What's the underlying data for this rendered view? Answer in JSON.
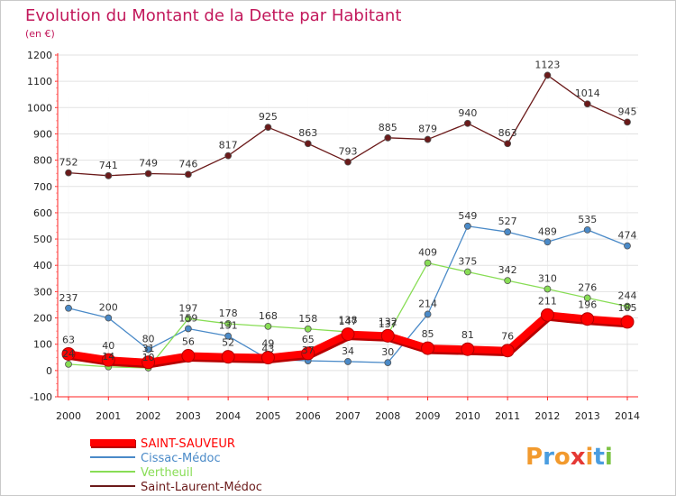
{
  "chart_data": {
    "type": "line",
    "title": "Evolution du Montant de la Dette par Habitant",
    "subtitle": "(en €)",
    "xlabel": "",
    "ylabel": "",
    "x": [
      "2000",
      "2001",
      "2002",
      "2003",
      "2004",
      "2005",
      "2006",
      "2007",
      "2008",
      "2009",
      "2010",
      "2011",
      "2012",
      "2013",
      "2014"
    ],
    "ylim": [
      -100,
      1200
    ],
    "yticks": [
      -100,
      0,
      100,
      200,
      300,
      400,
      500,
      600,
      700,
      800,
      900,
      1000,
      1100,
      1200
    ],
    "grid": true,
    "legend_position": "bottom-left",
    "series": [
      {
        "name": "SAINT-SAUVEUR",
        "color": "#ff0000",
        "values": [
          63,
          40,
          31,
          56,
          52,
          49,
          65,
          138,
          132,
          85,
          81,
          76,
          211,
          196,
          185
        ]
      },
      {
        "name": "Cissac-Médoc",
        "color": "#4a8ac8",
        "values": [
          237,
          200,
          80,
          159,
          131,
          43,
          37,
          34,
          30,
          214,
          549,
          527,
          489,
          535,
          474
        ]
      },
      {
        "name": "Vertheuil",
        "color": "#88dd55",
        "values": [
          24,
          14,
          10,
          197,
          178,
          168,
          158,
          147,
          137,
          409,
          375,
          342,
          310,
          276,
          244
        ]
      },
      {
        "name": "Saint-Laurent-Médoc",
        "color": "#6b1a1a",
        "values": [
          752,
          741,
          749,
          746,
          817,
          925,
          863,
          793,
          885,
          879,
          940,
          863,
          1123,
          1014,
          945
        ]
      }
    ]
  },
  "logo": {
    "text": "Proxiti"
  }
}
